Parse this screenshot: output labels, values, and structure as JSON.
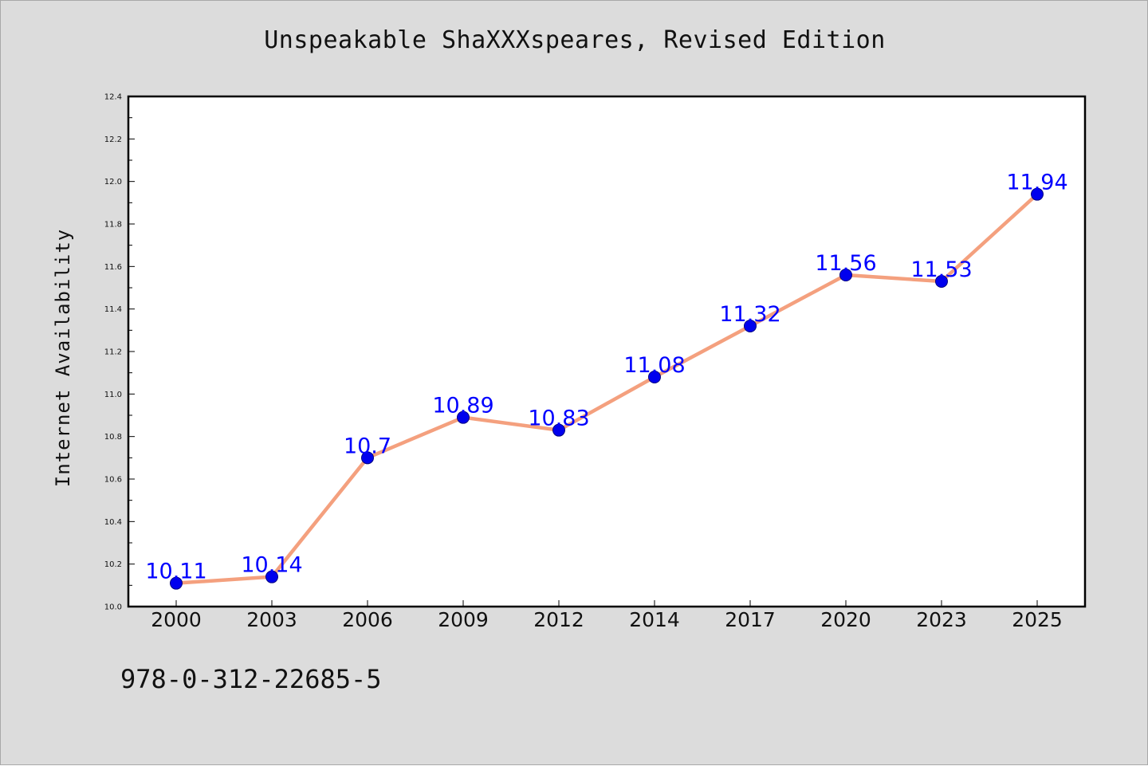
{
  "chart_data": {
    "type": "line",
    "title": "Unspeakable ShaXXXspeares, Revised Edition",
    "xlabel": "",
    "ylabel": "Internet Availability",
    "categories": [
      "2000",
      "2003",
      "2006",
      "2009",
      "2012",
      "2014",
      "2017",
      "2020",
      "2023",
      "2025"
    ],
    "series": [
      {
        "values": [
          10.11,
          10.14,
          10.7,
          10.89,
          10.83,
          11.08,
          11.32,
          11.56,
          11.53,
          11.94
        ],
        "data_labels": [
          "10.11",
          "10.14",
          "10.7",
          "10.89",
          "10.83",
          "11.08",
          "11.32",
          "11.56",
          "11.53",
          "11.94"
        ],
        "line_color": "#f4a07e",
        "marker_color": "#0000ee"
      }
    ],
    "ylim": [
      10.0,
      12.4
    ],
    "yticks": [
      "10.0",
      "10.2",
      "10.4",
      "10.6",
      "10.8",
      "11.0",
      "11.2",
      "11.4",
      "11.6",
      "11.8",
      "12.0",
      "12.2",
      "12.4"
    ],
    "grid": false,
    "legend": "none"
  },
  "footer": {
    "isbn": "978-0-312-22685-5"
  },
  "colors": {
    "background": "#dcdcdc",
    "plot_area": "#ffffff",
    "data_label": "#0000ff"
  }
}
